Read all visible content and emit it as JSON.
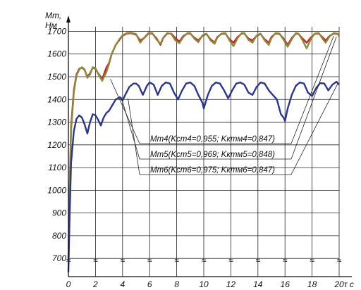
{
  "chart_data": {
    "type": "line",
    "ylabel": [
      "Mт,",
      "Нм"
    ],
    "xlabel": "τ с",
    "xlim": [
      0,
      20
    ],
    "ylim": [
      620,
      1720
    ],
    "x_ticks": [
      0,
      2,
      4,
      6,
      8,
      10,
      12,
      14,
      16,
      18,
      20
    ],
    "y_ticks": [
      700,
      800,
      900,
      1000,
      1100,
      1200,
      1300,
      1400,
      1500,
      1600,
      1700
    ],
    "x_tick_labels": [
      "0",
      "2",
      "4",
      "6",
      "8",
      "10",
      "12",
      "14",
      "16",
      "18",
      "20"
    ],
    "y_tick_labels": [
      "700",
      "800",
      "900",
      "1000",
      "1100",
      "1200",
      "1300",
      "1400",
      "1500",
      "1600",
      "1700"
    ],
    "axis_break_marks": "≈",
    "grid": true,
    "series": [
      {
        "name": "Mт4(Kcm4=0,955; Kктм4=0,847)",
        "color": "#c8202a",
        "x": [
          0,
          0.1,
          0.2,
          0.4,
          0.6,
          0.8,
          1.0,
          1.2,
          1.4,
          1.6,
          1.8,
          2.0,
          2.2,
          2.5,
          2.8,
          3.0,
          3.2,
          3.5,
          3.8,
          4.0,
          4.3,
          4.6,
          5.0,
          5.3,
          5.6,
          5.9,
          6.2,
          6.5,
          6.8,
          7.0,
          7.3,
          7.6,
          7.9,
          8.2,
          8.5,
          8.8,
          9.0,
          9.3,
          9.6,
          9.9,
          10.2,
          10.5,
          10.8,
          11.0,
          11.3,
          11.6,
          11.9,
          12.2,
          12.5,
          12.8,
          13.0,
          13.3,
          13.6,
          13.9,
          14.2,
          14.5,
          14.8,
          15.0,
          15.3,
          15.6,
          15.9,
          16.2,
          16.5,
          16.8,
          17.0,
          17.3,
          17.6,
          17.9,
          18.2,
          18.5,
          18.8,
          19.0,
          19.3,
          19.6,
          19.9,
          20.0
        ],
        "y": [
          700,
          1020,
          1280,
          1440,
          1510,
          1535,
          1540,
          1530,
          1500,
          1515,
          1540,
          1535,
          1515,
          1490,
          1540,
          1560,
          1600,
          1640,
          1665,
          1680,
          1690,
          1692,
          1685,
          1660,
          1670,
          1690,
          1690,
          1670,
          1640,
          1670,
          1690,
          1690,
          1670,
          1655,
          1680,
          1690,
          1690,
          1672,
          1660,
          1680,
          1688,
          1665,
          1650,
          1675,
          1688,
          1690,
          1665,
          1650,
          1675,
          1690,
          1690,
          1668,
          1660,
          1680,
          1688,
          1665,
          1650,
          1675,
          1690,
          1688,
          1668,
          1640,
          1670,
          1690,
          1688,
          1668,
          1650,
          1672,
          1688,
          1690,
          1672,
          1660,
          1680,
          1690,
          1688,
          1680
        ]
      },
      {
        "name": "Mт5(Kcm5=0,969; Kктм5=0,848)",
        "color": "#8a8a3a",
        "x": [
          0,
          0.1,
          0.2,
          0.4,
          0.6,
          0.8,
          1.0,
          1.2,
          1.4,
          1.6,
          1.8,
          2.0,
          2.2,
          2.5,
          2.8,
          3.0,
          3.2,
          3.5,
          3.8,
          4.0,
          4.3,
          4.6,
          5.0,
          5.3,
          5.6,
          5.9,
          6.2,
          6.5,
          6.8,
          7.0,
          7.3,
          7.6,
          7.9,
          8.2,
          8.5,
          8.8,
          9.0,
          9.3,
          9.6,
          9.9,
          10.2,
          10.5,
          10.8,
          11.0,
          11.3,
          11.6,
          11.9,
          12.2,
          12.5,
          12.8,
          13.0,
          13.3,
          13.6,
          13.9,
          14.2,
          14.5,
          14.8,
          15.0,
          15.3,
          15.6,
          15.9,
          16.2,
          16.5,
          16.8,
          17.0,
          17.3,
          17.6,
          17.9,
          18.2,
          18.5,
          18.8,
          19.0,
          19.3,
          19.6,
          19.9,
          20.0
        ],
        "y": [
          690,
          1000,
          1260,
          1430,
          1505,
          1532,
          1542,
          1532,
          1495,
          1510,
          1542,
          1538,
          1512,
          1482,
          1520,
          1555,
          1600,
          1640,
          1668,
          1682,
          1692,
          1694,
          1688,
          1650,
          1672,
          1692,
          1692,
          1665,
          1645,
          1672,
          1692,
          1688,
          1660,
          1648,
          1676,
          1692,
          1692,
          1668,
          1652,
          1682,
          1690,
          1660,
          1645,
          1672,
          1690,
          1692,
          1660,
          1635,
          1670,
          1692,
          1692,
          1662,
          1650,
          1682,
          1690,
          1660,
          1640,
          1670,
          1692,
          1690,
          1662,
          1632,
          1665,
          1692,
          1690,
          1660,
          1625,
          1665,
          1690,
          1692,
          1665,
          1650,
          1678,
          1692,
          1690,
          1676
        ]
      },
      {
        "name": "Mт6(Kcm6=0,975; Kктм6=0,847)",
        "color": "#2a3590",
        "x": [
          0,
          0.1,
          0.2,
          0.4,
          0.6,
          0.8,
          1.0,
          1.2,
          1.4,
          1.6,
          1.8,
          2.0,
          2.2,
          2.4,
          2.6,
          2.8,
          3.0,
          3.2,
          3.5,
          3.8,
          4.0,
          4.2,
          4.5,
          4.8,
          5.0,
          5.2,
          5.5,
          5.8,
          6.0,
          6.3,
          6.6,
          6.9,
          7.2,
          7.5,
          7.8,
          8.1,
          8.4,
          8.7,
          9.0,
          9.3,
          9.6,
          9.9,
          10.0,
          10.3,
          10.6,
          10.9,
          11.2,
          11.5,
          11.8,
          12.1,
          12.4,
          12.7,
          13.0,
          13.3,
          13.6,
          13.9,
          14.2,
          14.5,
          14.8,
          15.1,
          15.4,
          15.7,
          15.9,
          16.0,
          16.2,
          16.5,
          16.8,
          17.1,
          17.4,
          17.7,
          18.0,
          18.3,
          18.6,
          18.9,
          19.2,
          19.5,
          19.8,
          20.0
        ],
        "y": [
          640,
          900,
          1120,
          1260,
          1315,
          1330,
          1320,
          1290,
          1250,
          1300,
          1335,
          1330,
          1310,
          1285,
          1320,
          1340,
          1350,
          1370,
          1400,
          1410,
          1395,
          1420,
          1455,
          1470,
          1470,
          1460,
          1420,
          1460,
          1475,
          1465,
          1420,
          1460,
          1475,
          1470,
          1430,
          1400,
          1440,
          1470,
          1475,
          1460,
          1420,
          1385,
          1360,
          1420,
          1460,
          1475,
          1470,
          1440,
          1405,
          1440,
          1470,
          1475,
          1465,
          1430,
          1420,
          1455,
          1475,
          1470,
          1440,
          1420,
          1400,
          1335,
          1320,
          1305,
          1360,
          1420,
          1460,
          1475,
          1470,
          1430,
          1415,
          1450,
          1472,
          1470,
          1440,
          1465,
          1478,
          1465
        ]
      }
    ]
  }
}
